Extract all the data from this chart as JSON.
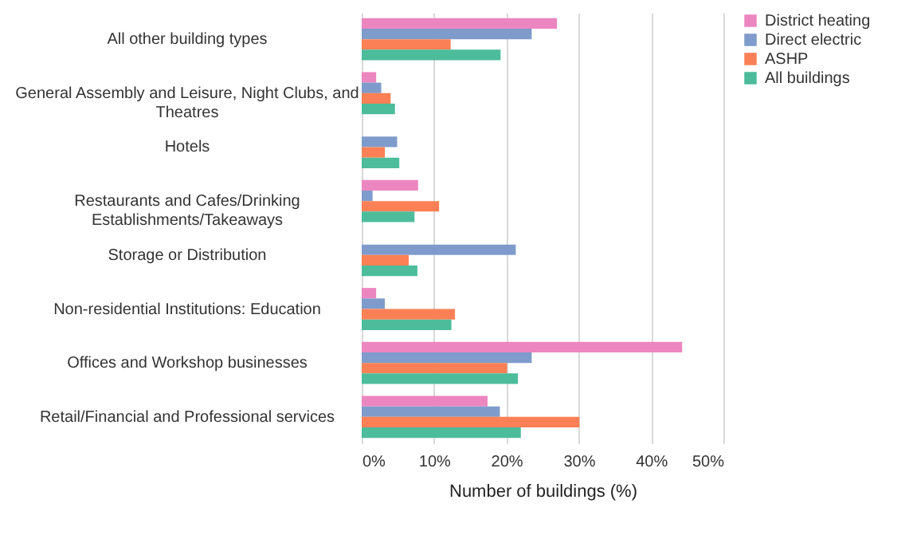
{
  "chart_data": {
    "type": "bar",
    "orientation": "horizontal",
    "xlabel": "Number of buildings (%)",
    "categories": [
      "All other building types",
      "General Assembly and Leisure, Night Clubs, and Theatres",
      "Hotels",
      "Restaurants and Cafes/Drinking Establishments/Takeaways",
      "Storage or Distribution",
      "Non-residential Institutions: Education",
      "Offices and Workshop businesses",
      "Retail/Financial and Professional services"
    ],
    "series": [
      {
        "name": "District heating",
        "color": "#ec86c0",
        "values": [
          27.0,
          2.0,
          null,
          7.8,
          null,
          2.0,
          44.3,
          17.4
        ]
      },
      {
        "name": "Direct electric",
        "color": "#7f9bcb",
        "values": [
          23.5,
          2.7,
          4.9,
          1.5,
          21.3,
          3.2,
          23.5,
          19.1
        ]
      },
      {
        "name": "ASHP",
        "color": "#fc8055",
        "values": [
          12.3,
          4.0,
          3.2,
          10.7,
          6.5,
          12.9,
          20.1,
          30.1
        ]
      },
      {
        "name": "All buildings",
        "color": "#4cbc9b",
        "values": [
          19.2,
          4.6,
          5.2,
          7.3,
          7.7,
          12.4,
          21.6,
          22.0
        ]
      }
    ],
    "xlim": [
      0,
      50
    ],
    "xticks": [
      {
        "value": 0,
        "label": "0%"
      },
      {
        "value": 10,
        "label": "10%"
      },
      {
        "value": 20,
        "label": "20%"
      },
      {
        "value": 30,
        "label": "30%"
      },
      {
        "value": 40,
        "label": "40%"
      },
      {
        "value": 50,
        "label": "50%"
      }
    ],
    "grid": "x",
    "legend": "right"
  }
}
